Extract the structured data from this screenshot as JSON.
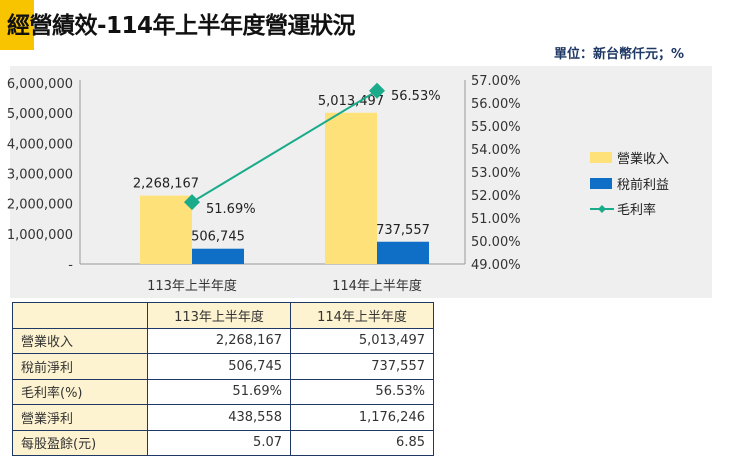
{
  "title": "經營績效-114年上半年度營運狀況",
  "unit": "單位：新台幣仟元；%",
  "colors": {
    "accent": "#f8c400",
    "revenue": "#ffe17a",
    "pretax": "#0f6fc6",
    "margin": "#1aab8a",
    "border": "#1f3864"
  },
  "chart_data": {
    "type": "bar+line",
    "categories": [
      "113年上半年度",
      "114年上半年度"
    ],
    "series": [
      {
        "name": "營業收入",
        "type": "bar",
        "axis": "left",
        "values": [
          2268167,
          5013497
        ],
        "labels": [
          "2,268,167",
          "5,013,497"
        ]
      },
      {
        "name": "稅前利益",
        "type": "bar",
        "axis": "left",
        "values": [
          506745,
          737557
        ],
        "labels": [
          "506,745",
          "737,557"
        ]
      },
      {
        "name": "毛利率",
        "type": "line",
        "axis": "right",
        "values": [
          51.69,
          56.53
        ],
        "labels": [
          "51.69%",
          "56.53%"
        ]
      }
    ],
    "left_axis": {
      "range": [
        0,
        6000000
      ],
      "ticks": [
        "-",
        "1,000,000",
        "2,000,000",
        "3,000,000",
        "4,000,000",
        "5,000,000",
        "6,000,000"
      ]
    },
    "right_axis": {
      "range": [
        49,
        57
      ],
      "ticks": [
        "49.00%",
        "50.00%",
        "51.00%",
        "52.00%",
        "53.00%",
        "54.00%",
        "55.00%",
        "56.00%",
        "57.00%"
      ]
    },
    "legend": "right",
    "grid": false
  },
  "table": {
    "headers": [
      "",
      "113年上半年度",
      "114年上半年度"
    ],
    "rows": [
      [
        "營業收入",
        "2,268,167",
        "5,013,497"
      ],
      [
        "稅前淨利",
        "506,745",
        "737,557"
      ],
      [
        "毛利率(%)",
        "51.69%",
        "56.53%"
      ],
      [
        "營業淨利",
        "438,558",
        "1,176,246"
      ],
      [
        "每股盈餘(元)",
        "5.07",
        "6.85"
      ]
    ]
  }
}
